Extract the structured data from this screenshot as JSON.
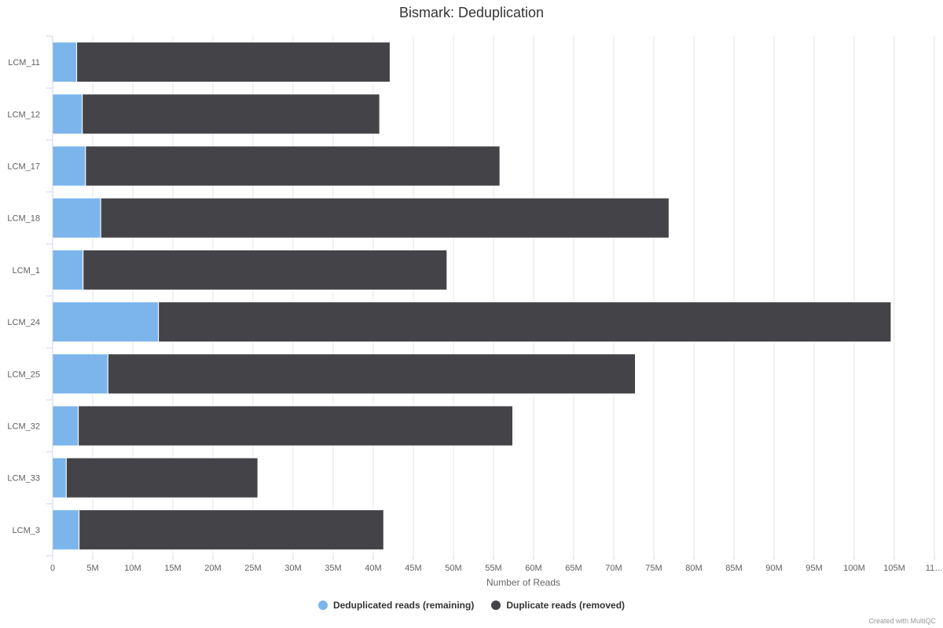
{
  "chart_data": {
    "type": "bar",
    "orientation": "horizontal",
    "stacked": true,
    "title": "Bismark: Deduplication",
    "xlabel": "Number of Reads",
    "ylabel": "",
    "xlim": [
      0,
      110000000
    ],
    "x_ticks": [
      "0",
      "5M",
      "10M",
      "15M",
      "20M",
      "25M",
      "30M",
      "35M",
      "40M",
      "45M",
      "50M",
      "55M",
      "60M",
      "65M",
      "70M",
      "75M",
      "80M",
      "85M",
      "90M",
      "95M",
      "100M",
      "105M",
      "11…"
    ],
    "categories": [
      "LCM_11",
      "LCM_12",
      "LCM_17",
      "LCM_18",
      "LCM_1",
      "LCM_24",
      "LCM_25",
      "LCM_32",
      "LCM_33",
      "LCM_3"
    ],
    "series": [
      {
        "name": "Deduplicated reads (remaining)",
        "color": "#7cb5ec",
        "values": [
          3000000,
          3700000,
          4100000,
          6000000,
          3800000,
          13200000,
          6900000,
          3200000,
          1700000,
          3300000
        ]
      },
      {
        "name": "Duplicate reads (removed)",
        "color": "#434348",
        "values": [
          39100000,
          37100000,
          51700000,
          70900000,
          45400000,
          91400000,
          65800000,
          54200000,
          23900000,
          38000000
        ]
      }
    ],
    "grid": true,
    "legend_position": "bottom-center"
  },
  "credits": "Created with MultiQC"
}
